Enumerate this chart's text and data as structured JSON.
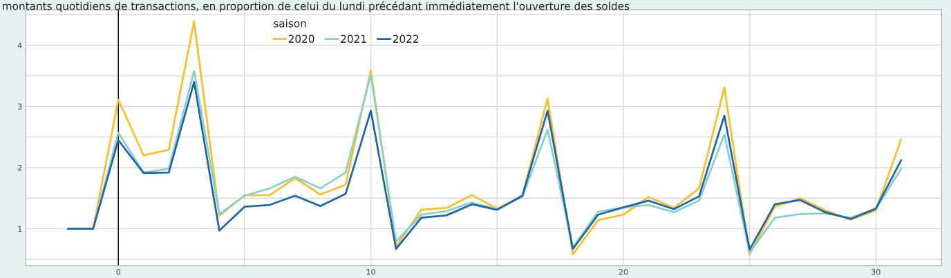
{
  "chart_data": {
    "type": "line",
    "title": "montants quotidiens de transactions, en proportion de celui du lundi précédant immédiatement l'ouverture des soldes",
    "x": [
      -2,
      -1,
      0,
      1,
      2,
      3,
      4,
      5,
      6,
      7,
      8,
      9,
      10,
      11,
      12,
      13,
      14,
      15,
      16,
      17,
      18,
      19,
      20,
      21,
      22,
      23,
      24,
      25,
      26,
      27,
      28,
      29,
      30,
      31
    ],
    "series": [
      {
        "name": "2020",
        "color": "#fbbf2a",
        "values": [
          1.0,
          1.0,
          3.11,
          2.2,
          2.29,
          4.39,
          1.21,
          1.55,
          1.55,
          1.83,
          1.56,
          1.72,
          3.59,
          0.71,
          1.31,
          1.34,
          1.55,
          1.33,
          1.54,
          3.13,
          0.58,
          1.14,
          1.23,
          1.52,
          1.34,
          1.66,
          3.31,
          0.58,
          1.36,
          1.5,
          1.3,
          1.15,
          1.3,
          2.46
        ]
      },
      {
        "name": "2021",
        "color": "#88d0cc",
        "values": [
          1.0,
          1.0,
          2.57,
          1.92,
          1.98,
          3.58,
          1.24,
          1.54,
          1.66,
          1.85,
          1.66,
          1.92,
          3.52,
          0.79,
          1.23,
          1.29,
          1.43,
          1.32,
          1.52,
          2.62,
          0.69,
          1.28,
          1.35,
          1.39,
          1.27,
          1.46,
          2.54,
          0.61,
          1.18,
          1.24,
          1.25,
          1.18,
          1.32,
          1.98
        ]
      },
      {
        "name": "2022",
        "color": "#2166ac",
        "values": [
          1.0,
          1.0,
          2.45,
          1.91,
          1.92,
          3.4,
          0.97,
          1.36,
          1.39,
          1.54,
          1.37,
          1.57,
          2.93,
          0.67,
          1.18,
          1.22,
          1.4,
          1.31,
          1.54,
          2.93,
          0.67,
          1.23,
          1.35,
          1.46,
          1.32,
          1.53,
          2.85,
          0.66,
          1.4,
          1.47,
          1.27,
          1.16,
          1.33,
          2.12
        ]
      }
    ],
    "legend_title": "saison",
    "legend": "top",
    "xlim": [
      -3.67,
      32.6
    ],
    "ylim": [
      0.4,
      4.58
    ],
    "xticks": [
      0,
      {
        "value": 5,
        "label": null
      },
      10,
      {
        "value": 15,
        "label": null
      },
      20,
      {
        "value": 25,
        "label": null
      },
      30
    ],
    "yticks": [
      {
        "value": 0.5,
        "label": null
      },
      1,
      {
        "value": 1.5,
        "label": null
      },
      2,
      {
        "value": 2.5,
        "label": null
      },
      3,
      {
        "value": 3.5,
        "label": null
      },
      4,
      {
        "value": 4.5,
        "label": null
      }
    ],
    "grid": true,
    "ref_lines": [
      {
        "axis": "x",
        "value": 0,
        "color": "#000000"
      }
    ],
    "line_style": "solid",
    "marker": "none"
  }
}
